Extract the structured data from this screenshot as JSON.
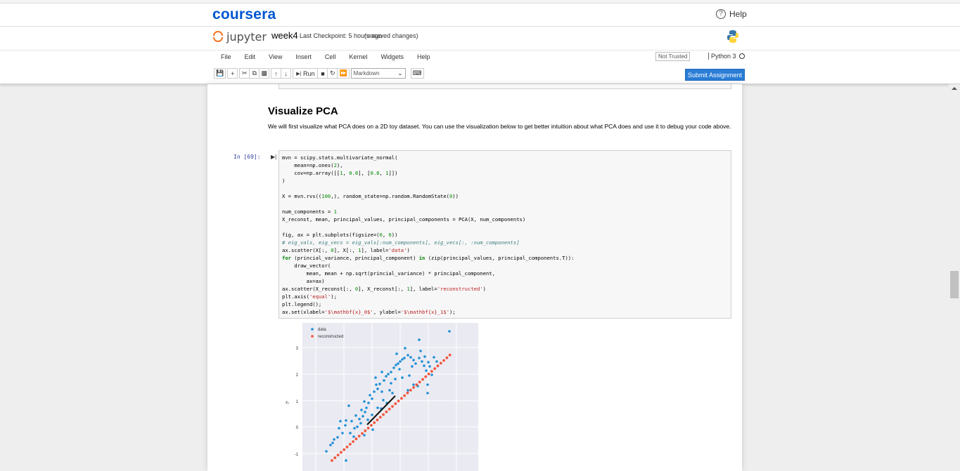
{
  "coursera": {
    "logo_text": "coursera",
    "help_label": "Help",
    "help_icon": "question-circle-icon"
  },
  "jupyter": {
    "logo_text": "jupyter",
    "notebook_name": "week4",
    "checkpoint": "Last Checkpoint: 5 hours ago",
    "unsaved": "(unsaved changes)"
  },
  "menu": {
    "items": [
      "File",
      "Edit",
      "View",
      "Insert",
      "Cell",
      "Kernel",
      "Widgets",
      "Help"
    ],
    "not_trusted": "Not Trusted",
    "kernel_name": "Python 3"
  },
  "toolbar": {
    "run_label": "Run",
    "cell_type": "Markdown",
    "submit_label": "Submit Assignment"
  },
  "notebook": {
    "heading": "Visualize PCA",
    "paragraph": "We will first visualize what PCA does on a 2D toy dataset. You can use the visualization below to get better intuition about what PCA does and use it to debug your code above.",
    "prompt": "In [69]:"
  },
  "plot": {
    "legend_data": "data",
    "legend_reconstructed": "reconstructed",
    "y_ticks": [
      "3",
      "2",
      "1",
      "0",
      "-1"
    ],
    "ylabel": "x₁",
    "colors": {
      "data": "#1f8fd6",
      "reconstructed": "#f2543a",
      "vector": "#111111"
    }
  }
}
